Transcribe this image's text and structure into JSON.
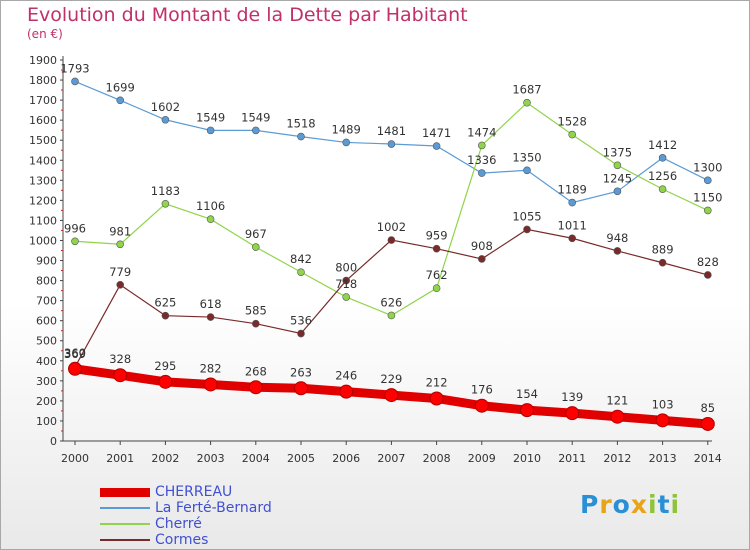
{
  "chart_data": {
    "type": "line",
    "title": "Evolution du Montant de la Dette par Habitant",
    "subtitle": "(en €)",
    "x": [
      "2000",
      "2001",
      "2002",
      "2003",
      "2004",
      "2005",
      "2006",
      "2007",
      "2008",
      "2009",
      "2010",
      "2011",
      "2012",
      "2013",
      "2014"
    ],
    "ylim": [
      0,
      1900
    ],
    "yticks": [
      0,
      100,
      200,
      300,
      400,
      500,
      600,
      700,
      800,
      900,
      1000,
      1100,
      1200,
      1300,
      1400,
      1500,
      1600,
      1700,
      1800,
      1900
    ],
    "grid": false,
    "legend_position": "bottom-left",
    "series": [
      {
        "name": "CHERREAU",
        "color": "#ff0000",
        "values": [
          360,
          328,
          295,
          282,
          268,
          263,
          246,
          229,
          212,
          176,
          154,
          139,
          121,
          103,
          85
        ]
      },
      {
        "name": "La Ferté-Bernard",
        "color": "#5b9bd5",
        "values": [
          1793,
          1699,
          1602,
          1549,
          1549,
          1518,
          1489,
          1481,
          1471,
          1336,
          1350,
          1189,
          1245,
          1412,
          1300
        ]
      },
      {
        "name": "Cherré",
        "color": "#8fd44a",
        "values": [
          996,
          981,
          1183,
          1106,
          967,
          842,
          718,
          626,
          762,
          1474,
          1687,
          1528,
          1375,
          1256,
          1150
        ]
      },
      {
        "name": "Cormes",
        "color": "#7a2a2a",
        "values": [
          369,
          779,
          625,
          618,
          585,
          536,
          800,
          1002,
          959,
          908,
          1055,
          1011,
          948,
          889,
          828
        ]
      }
    ]
  },
  "logo": {
    "letters": [
      "P",
      "r",
      "o",
      "x",
      "i",
      "t",
      "i"
    ],
    "colors": [
      "#2b8fd6",
      "#e8a317",
      "#2b8fd6",
      "#e8a317",
      "#8fc43a",
      "#2b8fd6",
      "#8fc43a"
    ]
  }
}
